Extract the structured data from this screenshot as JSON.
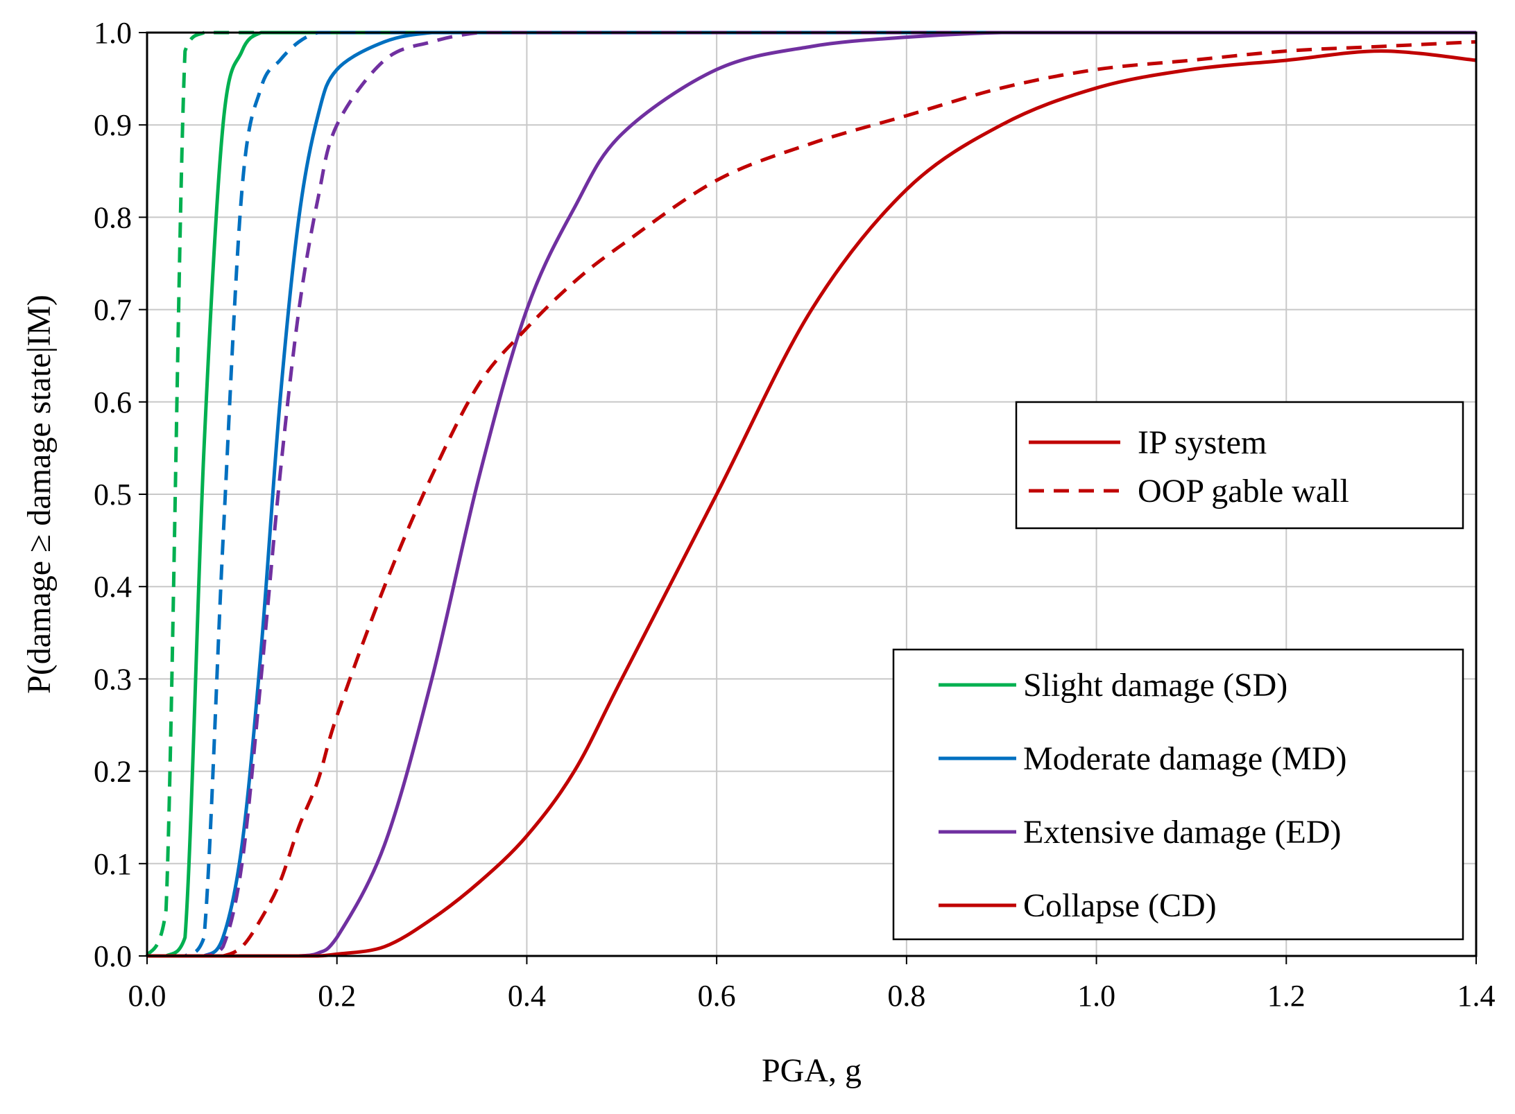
{
  "chart_data": {
    "type": "line",
    "title": "",
    "xlabel": "PGA, g",
    "ylabel": "P(damage ≥ damage state|IM)",
    "xlim": [
      0,
      1.4
    ],
    "ylim": [
      0,
      1.0
    ],
    "grid": true,
    "xticks": [
      "0.0",
      "0.2",
      "0.4",
      "0.6",
      "0.8",
      "1.0",
      "1.2",
      "1.4"
    ],
    "yticks": [
      "0.0",
      "0.1",
      "0.2",
      "0.3",
      "0.4",
      "0.5",
      "0.6",
      "0.7",
      "0.8",
      "0.9",
      "1.0"
    ],
    "x": [
      0.0,
      0.02,
      0.04,
      0.06,
      0.08,
      0.1,
      0.12,
      0.14,
      0.16,
      0.18,
      0.2,
      0.25,
      0.3,
      0.35,
      0.4,
      0.45,
      0.5,
      0.6,
      0.7,
      0.8,
      0.9,
      1.0,
      1.1,
      1.2,
      1.3,
      1.4
    ],
    "series": [
      {
        "name": "SD - IP system",
        "state": "SD",
        "system": "IP",
        "color": "#00b050",
        "dash": "solid",
        "values": [
          0.0,
          0.0,
          0.02,
          0.55,
          0.9,
          0.98,
          1.0,
          1.0,
          1.0,
          1.0,
          1.0,
          1.0,
          1.0,
          1.0,
          1.0,
          1.0,
          1.0,
          1.0,
          1.0,
          1.0,
          1.0,
          1.0,
          1.0,
          1.0,
          1.0,
          1.0
        ]
      },
      {
        "name": "SD - OOP gable wall",
        "state": "SD",
        "system": "OOP",
        "color": "#00b050",
        "dash": "dashed",
        "values": [
          0.0,
          0.05,
          0.98,
          1.0,
          1.0,
          1.0,
          1.0,
          1.0,
          1.0,
          1.0,
          1.0,
          1.0,
          1.0,
          1.0,
          1.0,
          1.0,
          1.0,
          1.0,
          1.0,
          1.0,
          1.0,
          1.0,
          1.0,
          1.0,
          1.0,
          1.0
        ]
      },
      {
        "name": "MD - IP system",
        "state": "MD",
        "system": "IP",
        "color": "#0070c0",
        "dash": "solid",
        "values": [
          0.0,
          0.0,
          0.0,
          0.0,
          0.02,
          0.12,
          0.33,
          0.6,
          0.8,
          0.91,
          0.96,
          0.99,
          1.0,
          1.0,
          1.0,
          1.0,
          1.0,
          1.0,
          1.0,
          1.0,
          1.0,
          1.0,
          1.0,
          1.0,
          1.0,
          1.0
        ]
      },
      {
        "name": "MD - OOP gable wall",
        "state": "MD",
        "system": "OOP",
        "color": "#0070c0",
        "dash": "dashed",
        "values": [
          0.0,
          0.0,
          0.0,
          0.02,
          0.45,
          0.83,
          0.94,
          0.97,
          0.99,
          1.0,
          1.0,
          1.0,
          1.0,
          1.0,
          1.0,
          1.0,
          1.0,
          1.0,
          1.0,
          1.0,
          1.0,
          1.0,
          1.0,
          1.0,
          1.0,
          1.0
        ]
      },
      {
        "name": "ED - IP system",
        "state": "ED",
        "system": "IP",
        "color": "#7030a0",
        "dash": "solid",
        "values": [
          0.0,
          0.0,
          0.0,
          0.0,
          0.0,
          0.0,
          0.0,
          0.0,
          0.0,
          0.003,
          0.02,
          0.12,
          0.3,
          0.52,
          0.7,
          0.81,
          0.89,
          0.96,
          0.985,
          0.995,
          1.0,
          1.0,
          1.0,
          1.0,
          1.0,
          1.0
        ]
      },
      {
        "name": "ED - OOP gable wall",
        "state": "ED",
        "system": "OOP",
        "color": "#7030a0",
        "dash": "dashed",
        "values": [
          0.0,
          0.0,
          0.0,
          0.0,
          0.01,
          0.1,
          0.3,
          0.52,
          0.7,
          0.82,
          0.9,
          0.97,
          0.99,
          1.0,
          1.0,
          1.0,
          1.0,
          1.0,
          1.0,
          1.0,
          1.0,
          1.0,
          1.0,
          1.0,
          1.0,
          1.0
        ]
      },
      {
        "name": "CD - IP system",
        "state": "CD",
        "system": "IP",
        "color": "#c00000",
        "dash": "solid",
        "values": [
          0.0,
          0.0,
          0.0,
          0.0,
          0.0,
          0.0,
          0.0,
          0.0,
          0.0,
          0.0,
          0.002,
          0.01,
          0.04,
          0.08,
          0.13,
          0.2,
          0.3,
          0.5,
          0.7,
          0.83,
          0.9,
          0.94,
          0.96,
          0.97,
          0.98,
          0.97
        ]
      },
      {
        "name": "CD - OOP gable wall",
        "state": "CD",
        "system": "OOP",
        "color": "#c00000",
        "dash": "dashed",
        "values": [
          0.0,
          0.0,
          0.0,
          0.0,
          0.0,
          0.01,
          0.04,
          0.08,
          0.14,
          0.19,
          0.26,
          0.4,
          0.52,
          0.62,
          0.68,
          0.73,
          0.77,
          0.84,
          0.88,
          0.91,
          0.94,
          0.96,
          0.97,
          0.98,
          0.985,
          0.99
        ]
      }
    ],
    "legend_system": [
      {
        "label": "IP system",
        "dash": "solid",
        "color": "#c00000"
      },
      {
        "label": "OOP gable wall",
        "dash": "dashed",
        "color": "#c00000"
      }
    ],
    "legend_states": [
      {
        "label": "Slight damage (SD)",
        "color": "#00b050"
      },
      {
        "label": "Moderate damage (MD)",
        "color": "#0070c0"
      },
      {
        "label": "Extensive damage (ED)",
        "color": "#7030a0"
      },
      {
        "label": "Collapse (CD)",
        "color": "#c00000"
      }
    ],
    "legend_placement": [
      "right-middle",
      "bottom-right"
    ]
  }
}
